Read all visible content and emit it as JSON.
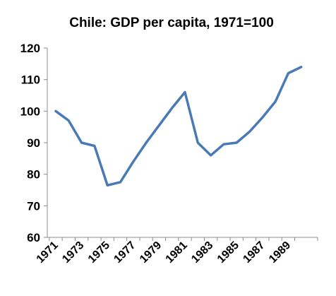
{
  "chart_data": {
    "type": "line",
    "title": "Chile: GDP per capita, 1971=100",
    "xlabel": "",
    "ylabel": "",
    "x": [
      1971,
      1972,
      1973,
      1974,
      1975,
      1976,
      1977,
      1978,
      1979,
      1980,
      1981,
      1982,
      1983,
      1984,
      1985,
      1986,
      1987,
      1988,
      1989,
      1990
    ],
    "x_tick_labels": [
      "1971",
      "1973",
      "1975",
      "1977",
      "1979",
      "1981",
      "1983",
      "1985",
      "1987",
      "1989"
    ],
    "series": [
      {
        "values": [
          100,
          97,
          90,
          89,
          76.5,
          77.5,
          84,
          90,
          95.5,
          101,
          106,
          90,
          86,
          89.5,
          90,
          93.5,
          98,
          103,
          112,
          114
        ]
      }
    ],
    "ylim": [
      60,
      120
    ],
    "y_ticks": [
      60,
      70,
      80,
      90,
      100,
      110,
      120
    ],
    "grid": false,
    "legend": "none",
    "line_color": "#4a7ab5"
  }
}
